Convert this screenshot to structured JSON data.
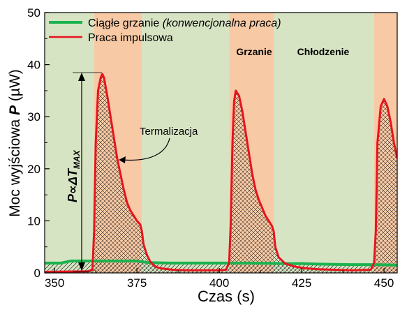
{
  "chart_data": {
    "type": "line",
    "xlabel": "Czas (s)",
    "ylabel": "Moc wyjściowa P (µW)",
    "xlim": [
      347,
      454
    ],
    "ylim": [
      0,
      50
    ],
    "xticks": [
      350,
      375,
      400,
      425,
      450
    ],
    "yticks": [
      0,
      10,
      20,
      30,
      40,
      50
    ],
    "grid": false,
    "legend_placement": "top-left",
    "colors": {
      "continuous": "#1bb34f",
      "pulsed": "#e8141c",
      "heating_band": "#f7c9a5",
      "cooling_band": "#d7e4c4"
    },
    "bands": [
      {
        "type": "cooling",
        "x0": 347,
        "x1": 362
      },
      {
        "type": "heating",
        "x0": 362,
        "x1": 376.5
      },
      {
        "type": "cooling",
        "x0": 376.5,
        "x1": 403
      },
      {
        "type": "heating",
        "x0": 403,
        "x1": 416.5
      },
      {
        "type": "cooling",
        "x0": 416.5,
        "x1": 447
      },
      {
        "type": "heating",
        "x0": 447,
        "x1": 454
      }
    ],
    "band_labels": [
      "Grzanie",
      "Chłodzenie"
    ],
    "series": [
      {
        "name": "Ciągłe grzanie (konwencjonalna praca)",
        "x": [
          347,
          352,
          355,
          365,
          375,
          378,
          385,
          400,
          410,
          420,
          425,
          430,
          440,
          447,
          454
        ],
        "y": [
          1.9,
          1.9,
          2.3,
          2.3,
          2.3,
          2.0,
          1.9,
          1.9,
          1.9,
          1.8,
          1.8,
          1.7,
          1.6,
          1.6,
          1.5
        ]
      },
      {
        "name": "Praca impulsowa",
        "x": [
          347,
          360,
          361.5,
          362,
          362.5,
          363.2,
          364,
          364.5,
          365,
          366,
          367,
          368,
          369,
          370,
          371,
          372,
          373,
          374,
          375,
          376,
          376.5,
          377,
          378,
          379,
          380,
          381,
          383,
          386,
          390,
          400,
          402,
          403,
          403.5,
          404,
          404.5,
          405,
          406,
          407,
          408,
          409,
          410,
          411,
          412,
          413,
          414,
          415,
          416,
          416.5,
          417,
          418,
          420,
          423,
          426,
          430,
          440,
          446,
          447,
          447.5,
          448,
          449,
          450,
          451,
          452,
          453,
          454
        ],
        "y": [
          0.2,
          0.3,
          0.6,
          8,
          25,
          35,
          37.5,
          38.2,
          37.5,
          34,
          30,
          26,
          22,
          19,
          16,
          13.5,
          12,
          11,
          10,
          9.3,
          8,
          5.5,
          3.5,
          2.2,
          1.5,
          1.1,
          0.8,
          0.6,
          0.5,
          0.5,
          0.6,
          2,
          10,
          25,
          33,
          35,
          34,
          31,
          27,
          23,
          19,
          16,
          14,
          12.5,
          11,
          10,
          9,
          8,
          5,
          3,
          1.8,
          1.2,
          0.9,
          0.7,
          0.5,
          0.6,
          2,
          8,
          25,
          32,
          33.4,
          32,
          29,
          25,
          22
        ]
      }
    ],
    "annotations": [
      {
        "text": "Termalizacja",
        "x": 378,
        "y": 28
      },
      {
        "text": "P∝ΔT",
        "subscript": "MAX",
        "x": 356,
        "y": 20
      }
    ]
  }
}
